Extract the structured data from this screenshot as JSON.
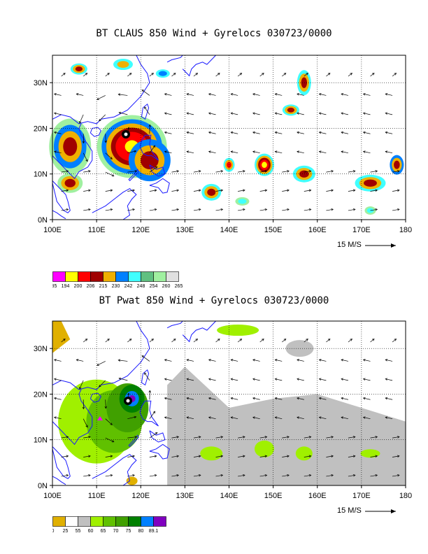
{
  "panels": [
    {
      "id": "claus",
      "title": "BT CLAUS 850 Wind + Gyrelocs 030723/0000",
      "x_ticks": [
        "100E",
        "110E",
        "120E",
        "130E",
        "140E",
        "150E",
        "160E",
        "170E",
        "180"
      ],
      "y_ticks": [
        "0N",
        "10N",
        "20N",
        "30N"
      ],
      "scale_label": "15 M/S",
      "colorbar": {
        "colors": [
          "#ff00ff",
          "#ffff00",
          "#ff0000",
          "#a00000",
          "#f0b000",
          "#0080ff",
          "#40ffff",
          "#60c080",
          "#a0f0a0",
          "#e0e0e0"
        ],
        "labels": [
          "185",
          "194",
          "200",
          "206",
          "215",
          "230",
          "242",
          "248",
          "254",
          "260",
          "265"
        ]
      }
    },
    {
      "id": "pwat",
      "title": "BT Pwat 850 Wind + Gyrelocs 030723/0000",
      "x_ticks": [
        "100E",
        "110E",
        "120E",
        "130E",
        "140E",
        "150E",
        "160E",
        "170E",
        "180"
      ],
      "y_ticks": [
        "0N",
        "10N",
        "20N",
        "30N"
      ],
      "scale_label": "15 M/S",
      "colorbar": {
        "colors": [
          "#e0b000",
          "#ffffff",
          "#c0c0c0",
          "#a0f000",
          "#60c000",
          "#40a000",
          "#008000",
          "#0080ff",
          "#8000c0"
        ],
        "labels": [
          "0",
          "25",
          "55",
          "60",
          "65",
          "70",
          "75",
          "80",
          "89.1"
        ]
      }
    }
  ]
}
